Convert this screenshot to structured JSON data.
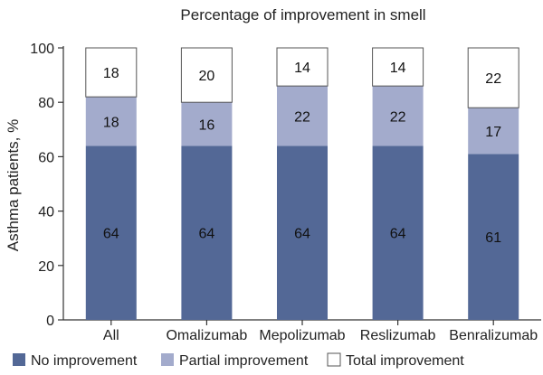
{
  "chart_data": {
    "type": "bar",
    "stacked": true,
    "title": "Percentage of improvement in smell",
    "xlabel": "",
    "ylabel": "Asthma patients, %",
    "ylim": [
      0,
      100
    ],
    "yticks": [
      0,
      20,
      40,
      60,
      80,
      100
    ],
    "categories": [
      "All",
      "Omalizumab",
      "Mepolizumab",
      "Reslizumab",
      "Benralizumab"
    ],
    "series": [
      {
        "name": "No improvement",
        "values": [
          64,
          64,
          64,
          64,
          61
        ],
        "color": "#536896",
        "label_color": "#111111"
      },
      {
        "name": "Partial improvement",
        "values": [
          18,
          16,
          22,
          22,
          17
        ],
        "color": "#a3abcc",
        "label_color": "#111111"
      },
      {
        "name": "Total improvement",
        "values": [
          18,
          20,
          14,
          14,
          22
        ],
        "color": "#ffffff",
        "label_color": "#111111"
      }
    ],
    "legend_position": "bottom"
  }
}
